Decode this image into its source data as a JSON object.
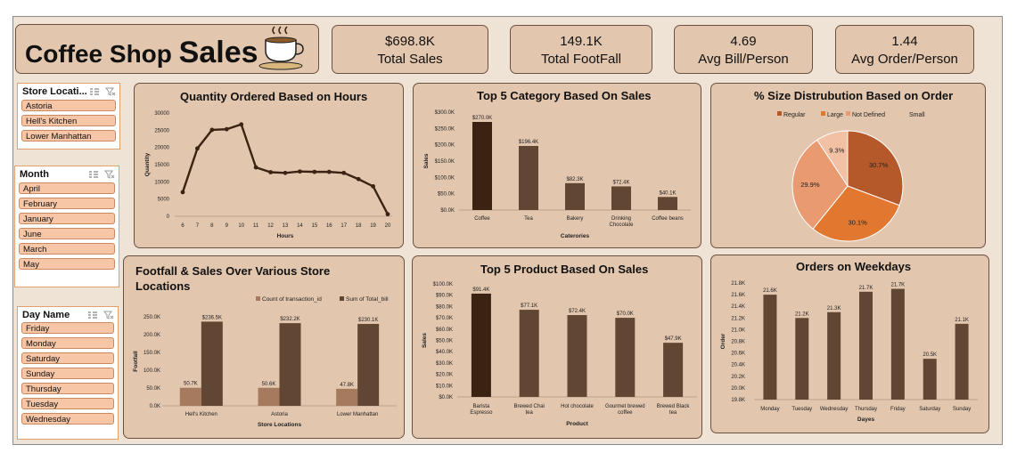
{
  "title": {
    "part1": "Coffee Shop",
    "part2": "Sales"
  },
  "kpis": [
    {
      "value": "$698.8K",
      "label": "Total Sales"
    },
    {
      "value": "149.1K",
      "label": "Total FootFall"
    },
    {
      "value": "4.69",
      "label": "Avg Bill/Person"
    },
    {
      "value": "1.44",
      "label": "Avg Order/Person"
    }
  ],
  "slicers": {
    "store": {
      "header": "Store Locati...",
      "items": [
        "Astoria",
        "Hell's Kitchen",
        "Lower Manhattan"
      ]
    },
    "month": {
      "header": "Month",
      "items": [
        "April",
        "February",
        "January",
        "June",
        "March",
        "May"
      ]
    },
    "day": {
      "header": "Day Name",
      "items": [
        "Friday",
        "Monday",
        "Saturday",
        "Sunday",
        "Thursday",
        "Tuesday",
        "Wednesday"
      ]
    }
  },
  "chart_titles": {
    "hours": "Quantity Ordered Based on Hours",
    "category": "Top 5 Category Based On Sales",
    "size": "% Size Distrubution Based on Order",
    "footfall_line1": "Footfall & Sales Over Various Store",
    "footfall_line2": "Locations",
    "product": "Top 5 Product Based On Sales",
    "weekday": "Orders on Weekdays"
  },
  "colors": {
    "dark": "#3b2314",
    "mid": "#624634",
    "light": "#a57a5e",
    "pie": [
      "#b5592a",
      "#e2782f",
      "#e99a70",
      "#f2c0a3"
    ]
  },
  "chart_data": [
    {
      "type": "line",
      "title": "Quantity Ordered Based on Hours",
      "xlabel": "Hours",
      "ylabel": "Quantity",
      "x": [
        6,
        7,
        8,
        9,
        10,
        11,
        12,
        13,
        14,
        15,
        16,
        17,
        18,
        19,
        20
      ],
      "values": [
        7000,
        19700,
        25100,
        25300,
        26700,
        14200,
        12800,
        12600,
        13000,
        12900,
        12900,
        12600,
        10800,
        8700,
        600
      ],
      "ylim": [
        0,
        30000
      ],
      "yticks": [
        "0",
        "5000",
        "10000",
        "15000",
        "20000",
        "25000",
        "30000"
      ]
    },
    {
      "type": "bar",
      "title": "Top 5 Category Based On Sales",
      "xlabel": "Caterories",
      "ylabel": "Sales",
      "categories": [
        "Coffee",
        "Tea",
        "Bakery",
        "Drinking Chocolate",
        "Coffee beans"
      ],
      "values": [
        270.0,
        196.4,
        82.3,
        72.4,
        40.1
      ],
      "labels": [
        "$270.0K",
        "$196.4K",
        "$82.3K",
        "$72.4K",
        "$40.1K"
      ],
      "ylim": [
        0,
        300
      ],
      "yticks": [
        "$0.0K",
        "$50.0K",
        "$100.0K",
        "$150.0K",
        "$200.0K",
        "$250.0K",
        "$300.0K"
      ]
    },
    {
      "type": "pie",
      "title": "% Size Distrubution Based on Order",
      "labels": [
        "Regular",
        "Large",
        "Not Defined",
        "Small"
      ],
      "values": [
        30.7,
        30.1,
        29.9,
        9.3
      ],
      "value_labels": [
        "30.7%",
        "30.1%",
        "29.9%",
        "9.3%"
      ]
    },
    {
      "type": "bar",
      "title": "Footfall & Sales Over Various Store Locations",
      "xlabel": "Store Locations",
      "ylabel": "Footfall",
      "categories": [
        "Hell's Kitchen",
        "Astoria",
        "Lower Manhattan"
      ],
      "series": [
        {
          "name": "Count of transaction_id",
          "values": [
            50.7,
            50.6,
            47.8
          ],
          "labels": [
            "50.7K",
            "50.6K",
            "47.8K"
          ]
        },
        {
          "name": "Sum of Total_bill",
          "values": [
            236.5,
            232.2,
            230.1
          ],
          "labels": [
            "$236.5K",
            "$232.2K",
            "$230.1K"
          ]
        }
      ],
      "ylim": [
        0,
        250
      ],
      "yticks": [
        "0.0K",
        "50.0K",
        "100.0K",
        "150.0K",
        "200.0K",
        "250.0K"
      ]
    },
    {
      "type": "bar",
      "title": "Top 5 Product Based On Sales",
      "xlabel": "Product",
      "ylabel": "Sales",
      "categories": [
        "Barista Espresso",
        "Brewed Chai tea",
        "Hot chocolate",
        "Gourmet brewed coffee",
        "Brewed Black tea"
      ],
      "values": [
        91.4,
        77.1,
        72.4,
        70.0,
        47.9
      ],
      "labels": [
        "$91.4K",
        "$77.1K",
        "$72.4K",
        "$70.0K",
        "$47.9K"
      ],
      "ylim": [
        0,
        100
      ],
      "yticks": [
        "$0.0K",
        "$10.0K",
        "$20.0K",
        "$30.0K",
        "$40.0K",
        "$50.0K",
        "$60.0K",
        "$70.0K",
        "$80.0K",
        "$90.0K",
        "$100.0K"
      ]
    },
    {
      "type": "bar",
      "title": "Orders on Weekdays",
      "xlabel": "Dayes",
      "ylabel": "Order",
      "categories": [
        "Monday",
        "Tuesday",
        "Wednesday",
        "Thursday",
        "Friday",
        "Saturday",
        "Sunday"
      ],
      "values": [
        21.6,
        21.2,
        21.3,
        21.65,
        21.7,
        20.5,
        21.1
      ],
      "labels": [
        "21.6K",
        "21.2K",
        "21.3K",
        "21.7K",
        "21.7K",
        "20.5K",
        "21.1K"
      ],
      "ylim": [
        19.8,
        21.8
      ],
      "yticks": [
        "19.8K",
        "20.0K",
        "20.2K",
        "20.4K",
        "20.6K",
        "20.8K",
        "21.0K",
        "21.2K",
        "21.4K",
        "21.6K",
        "21.8K"
      ]
    }
  ]
}
